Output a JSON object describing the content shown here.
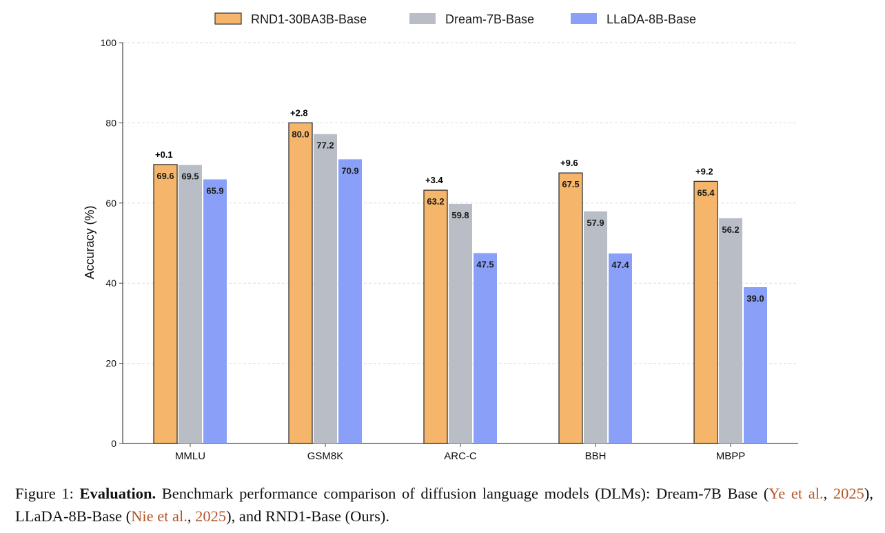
{
  "chart_data": {
    "type": "bar",
    "title": "",
    "xlabel": "",
    "ylabel": "Accuracy (%)",
    "ylim": [
      0,
      100
    ],
    "yticks": [
      0,
      20,
      40,
      60,
      80,
      100
    ],
    "grid": "horizontal-dashed",
    "legend_position": "top-center",
    "categories": [
      "MMLU",
      "GSM8K",
      "ARC-C",
      "BBH",
      "MBPP"
    ],
    "series": [
      {
        "name": "RND1-30BA3B-Base",
        "color": "#f5b56a",
        "values": [
          69.6,
          80.0,
          63.2,
          67.5,
          65.4
        ],
        "labels": [
          "69.6",
          "80.0",
          "63.2",
          "67.5",
          "65.4"
        ]
      },
      {
        "name": "Dream-7B-Base",
        "color": "#b9bec6",
        "values": [
          69.5,
          77.2,
          59.8,
          57.9,
          56.2
        ],
        "labels": [
          "69.5",
          "77.2",
          "59.8",
          "57.9",
          "56.2"
        ]
      },
      {
        "name": "LLaDA-8B-Base",
        "color": "#8aa0f8",
        "values": [
          65.9,
          70.9,
          47.5,
          47.4,
          39.0
        ],
        "labels": [
          "65.9",
          "70.9",
          "47.5",
          "47.4",
          "39.0"
        ]
      }
    ],
    "annotations": [
      "+0.1",
      "+2.8",
      "+3.4",
      "+9.6",
      "+9.2"
    ]
  },
  "caption": {
    "prefix": "Figure 1: ",
    "bold": "Evaluation.",
    "text1": " Benchmark performance comparison of diffusion language models (DLMs): Dream-7B Base (",
    "cite1_author": "Ye et al.",
    "sep1": ", ",
    "cite1_year": "2025",
    "text2": "), LLaDA-8B-Base (",
    "cite2_author": "Nie et al.",
    "sep2": ", ",
    "cite2_year": "2025",
    "text3": "), and RND1-Base (Ours)."
  }
}
